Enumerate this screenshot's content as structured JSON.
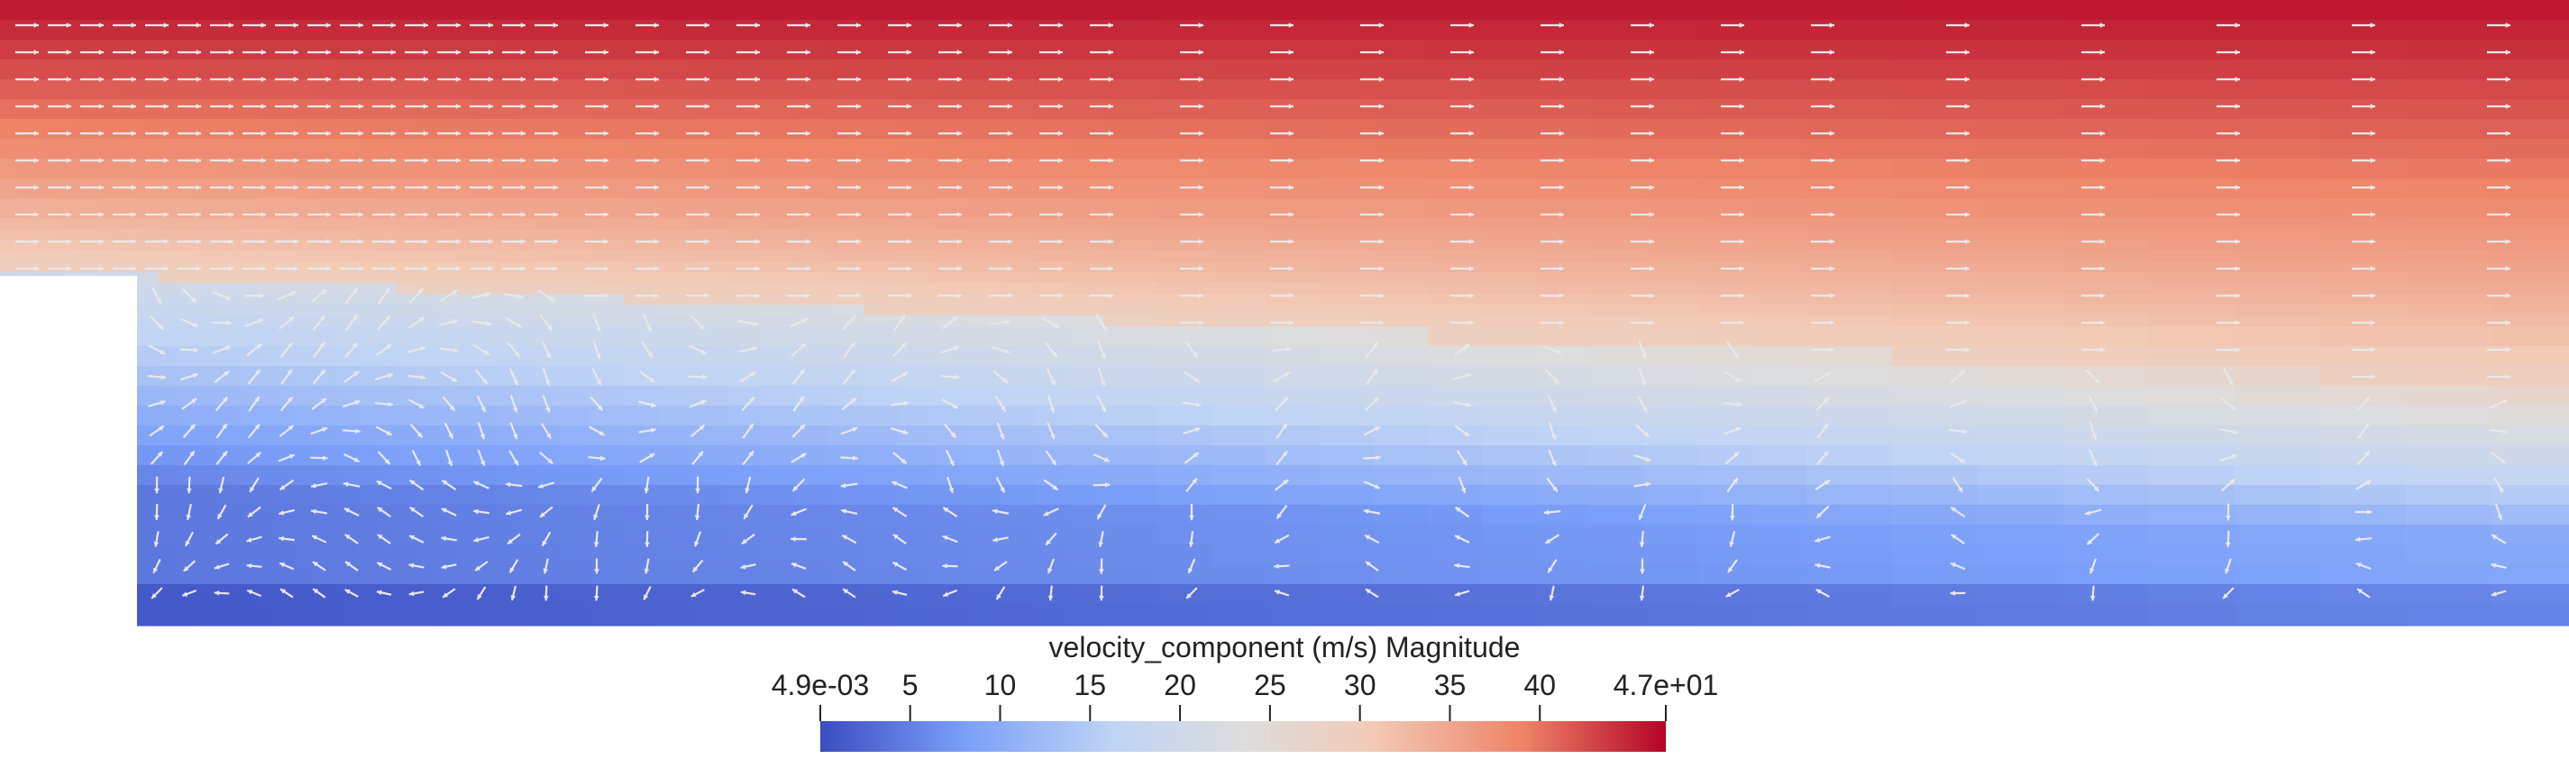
{
  "colorbar": {
    "title": "velocity_component (m/s) Magnitude",
    "min_label": "4.9e-03",
    "max_label": "4.7e+01",
    "min_value": 0.0049,
    "max_value": 47,
    "ticks": [
      {
        "label": "4.9e-03",
        "value": 0.0049
      },
      {
        "label": "5",
        "value": 5
      },
      {
        "label": "10",
        "value": 10
      },
      {
        "label": "15",
        "value": 15
      },
      {
        "label": "20",
        "value": 20
      },
      {
        "label": "25",
        "value": 25
      },
      {
        "label": "30",
        "value": 30
      },
      {
        "label": "35",
        "value": 35
      },
      {
        "label": "40",
        "value": 40
      },
      {
        "label": "4.7e+01",
        "value": 47
      }
    ],
    "colormap": [
      "#3b4cc0",
      "#7b9ff9",
      "#c0d4f5",
      "#dddddd",
      "#f2cbb7",
      "#ee8468",
      "#b40426"
    ]
  },
  "field": {
    "colors": {
      "free_stream": "#b8402f",
      "shear_layer": "#dcdcdc",
      "recirculation": "#3d55b3",
      "glyph": "#e8e8e8",
      "obstacle": "#ffffff"
    }
  }
}
